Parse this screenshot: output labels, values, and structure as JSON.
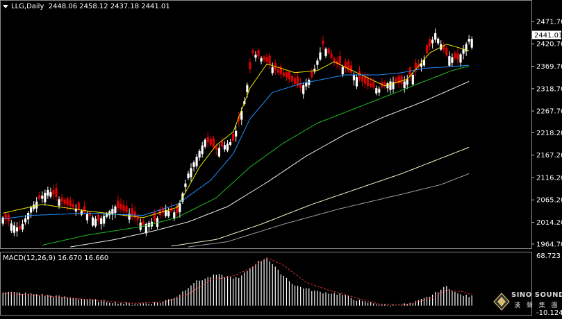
{
  "header": {
    "symbol_tf": "LLG,Daily",
    "ohlc": "2448.06 2458.12 2437.18 2441.01"
  },
  "macd_header": "MACD(12,26,9) 16.670 16.660",
  "logo": {
    "name": "SINO SOUND",
    "cn": "漢 聲 集 團",
    "icon": "diamond-logo-icon"
  },
  "colors": {
    "background": "#000000",
    "bull_candle": "#ffffff",
    "bear_candle": "#e00000",
    "ma1": "#e8e800",
    "ma2": "#1e90ff",
    "ma3": "#22bb22",
    "ma4": "#f0f0f0",
    "ma5": "#f5f5c8",
    "ma6": "#a0a0a0",
    "macd_hist": "#ffffff",
    "macd_signal": "#e03030"
  },
  "chart_data": {
    "type": "candlestick",
    "price_axis": {
      "ticks": [
        2471.7,
        2420.7,
        2369.7,
        2318.7,
        2267.7,
        2218.2,
        2167.2,
        2116.2,
        2065.2,
        2014.2,
        1964.7
      ],
      "tick_labels": [
        "2471.70",
        "2420.70",
        "2369.70",
        "2318.70",
        "2267.70",
        "2218.20",
        "2167.20",
        "2116.20",
        "2065.20",
        "2014.20",
        "1964.70"
      ],
      "current_price_label": "2441.01",
      "range": [
        1955,
        2489
      ]
    },
    "anchors": [
      [
        0,
        2025
      ],
      [
        6,
        1998
      ],
      [
        10,
        2048
      ],
      [
        16,
        2088
      ],
      [
        22,
        2056
      ],
      [
        28,
        2040
      ],
      [
        34,
        2018
      ],
      [
        40,
        2050
      ],
      [
        46,
        2030
      ],
      [
        50,
        2008
      ],
      [
        54,
        2018
      ],
      [
        58,
        2042
      ],
      [
        62,
        2035
      ],
      [
        66,
        2125
      ],
      [
        72,
        2202
      ],
      [
        76,
        2180
      ],
      [
        82,
        2200
      ],
      [
        86,
        2290
      ],
      [
        89,
        2400
      ],
      [
        94,
        2380
      ],
      [
        98,
        2355
      ],
      [
        102,
        2340
      ],
      [
        106,
        2320
      ],
      [
        110,
        2345
      ],
      [
        114,
        2420
      ],
      [
        118,
        2378
      ],
      [
        122,
        2365
      ],
      [
        126,
        2345
      ],
      [
        130,
        2325
      ],
      [
        134,
        2318
      ],
      [
        138,
        2335
      ],
      [
        142,
        2330
      ],
      [
        146,
        2350
      ],
      [
        150,
        2385
      ],
      [
        154,
        2445
      ],
      [
        158,
        2395
      ],
      [
        162,
        2385
      ],
      [
        166,
        2432
      ]
    ],
    "candle_count": 168,
    "moving_averages": [
      {
        "key": "ma1",
        "anchors": [
          [
            0,
            2035
          ],
          [
            14,
            2055
          ],
          [
            30,
            2040
          ],
          [
            50,
            2025
          ],
          [
            62,
            2048
          ],
          [
            70,
            2140
          ],
          [
            76,
            2190
          ],
          [
            82,
            2220
          ],
          [
            88,
            2320
          ],
          [
            94,
            2375
          ],
          [
            104,
            2355
          ],
          [
            112,
            2360
          ],
          [
            118,
            2380
          ],
          [
            126,
            2355
          ],
          [
            136,
            2325
          ],
          [
            144,
            2340
          ],
          [
            152,
            2400
          ],
          [
            158,
            2420
          ],
          [
            166,
            2405
          ]
        ]
      },
      {
        "key": "ma2",
        "anchors": [
          [
            0,
            2022
          ],
          [
            10,
            2030
          ],
          [
            30,
            2035
          ],
          [
            50,
            2030
          ],
          [
            62,
            2055
          ],
          [
            74,
            2110
          ],
          [
            82,
            2170
          ],
          [
            88,
            2250
          ],
          [
            96,
            2310
          ],
          [
            106,
            2330
          ],
          [
            114,
            2340
          ],
          [
            122,
            2350
          ],
          [
            134,
            2350
          ],
          [
            142,
            2355
          ],
          [
            150,
            2365
          ],
          [
            158,
            2368
          ],
          [
            166,
            2372
          ]
        ]
      },
      {
        "key": "ma3",
        "anchors": [
          [
            14,
            1962
          ],
          [
            30,
            1985
          ],
          [
            50,
            2005
          ],
          [
            62,
            2025
          ],
          [
            76,
            2070
          ],
          [
            88,
            2140
          ],
          [
            100,
            2195
          ],
          [
            112,
            2240
          ],
          [
            124,
            2270
          ],
          [
            136,
            2300
          ],
          [
            148,
            2330
          ],
          [
            160,
            2360
          ],
          [
            166,
            2370
          ]
        ]
      },
      {
        "key": "ma4",
        "anchors": [
          [
            24,
            1958
          ],
          [
            40,
            1975
          ],
          [
            54,
            1995
          ],
          [
            66,
            2015
          ],
          [
            80,
            2050
          ],
          [
            94,
            2105
          ],
          [
            108,
            2165
          ],
          [
            122,
            2215
          ],
          [
            136,
            2255
          ],
          [
            150,
            2290
          ],
          [
            166,
            2335
          ]
        ]
      },
      {
        "key": "ma5",
        "anchors": [
          [
            60,
            1960
          ],
          [
            76,
            1975
          ],
          [
            92,
            2010
          ],
          [
            110,
            2055
          ],
          [
            126,
            2090
          ],
          [
            142,
            2125
          ],
          [
            156,
            2160
          ],
          [
            166,
            2185
          ]
        ]
      },
      {
        "key": "ma6",
        "anchors": [
          [
            66,
            1958
          ],
          [
            80,
            1970
          ],
          [
            100,
            2010
          ],
          [
            120,
            2045
          ],
          [
            140,
            2075
          ],
          [
            156,
            2100
          ],
          [
            166,
            2125
          ]
        ]
      }
    ],
    "macd": {
      "axis_labels": [
        "68.723",
        "-10.124"
      ],
      "range": [
        -10.124,
        68.723
      ],
      "histogram_anchors": [
        [
          0,
          18
        ],
        [
          14,
          14
        ],
        [
          30,
          8
        ],
        [
          46,
          2
        ],
        [
          56,
          4
        ],
        [
          62,
          12
        ],
        [
          68,
          30
        ],
        [
          76,
          40
        ],
        [
          84,
          35
        ],
        [
          90,
          55
        ],
        [
          94,
          62
        ],
        [
          98,
          45
        ],
        [
          104,
          26
        ],
        [
          112,
          18
        ],
        [
          120,
          15
        ],
        [
          128,
          5
        ],
        [
          138,
          0
        ],
        [
          146,
          3
        ],
        [
          152,
          12
        ],
        [
          158,
          25
        ],
        [
          162,
          15
        ],
        [
          166,
          12
        ]
      ],
      "signal_anchors": [
        [
          0,
          16
        ],
        [
          14,
          13
        ],
        [
          30,
          8
        ],
        [
          46,
          3
        ],
        [
          58,
          5
        ],
        [
          66,
          15
        ],
        [
          74,
          33
        ],
        [
          82,
          38
        ],
        [
          88,
          48
        ],
        [
          94,
          62
        ],
        [
          100,
          52
        ],
        [
          108,
          30
        ],
        [
          116,
          20
        ],
        [
          124,
          12
        ],
        [
          134,
          2
        ],
        [
          144,
          1
        ],
        [
          152,
          9
        ],
        [
          158,
          20
        ],
        [
          164,
          18
        ],
        [
          166,
          15
        ]
      ]
    }
  }
}
